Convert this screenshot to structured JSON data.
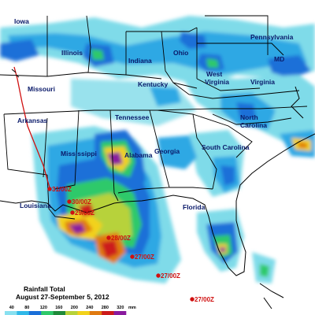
{
  "states": [
    {
      "key": "iowa",
      "name": "Iowa"
    },
    {
      "key": "illinois",
      "name": "Illinois"
    },
    {
      "key": "indiana",
      "name": "Indiana"
    },
    {
      "key": "ohio",
      "name": "Ohio"
    },
    {
      "key": "pennsylvania",
      "name": "Pennsylvania"
    },
    {
      "key": "md",
      "name": "MD"
    },
    {
      "key": "missouri",
      "name": "Missouri"
    },
    {
      "key": "kentucky",
      "name": "Kentucky"
    },
    {
      "key": "west_virginia_1",
      "name": "West"
    },
    {
      "key": "west_virginia_2",
      "name": "Virginia"
    },
    {
      "key": "virginia",
      "name": "Virginia"
    },
    {
      "key": "arkansas",
      "name": "Arkansas"
    },
    {
      "key": "tennessee",
      "name": "Tennessee"
    },
    {
      "key": "north_carolina_1",
      "name": "North"
    },
    {
      "key": "north_carolina_2",
      "name": "Carolina"
    },
    {
      "key": "mississippi",
      "name": "Mississippi"
    },
    {
      "key": "alabama",
      "name": "Alabama"
    },
    {
      "key": "georgia",
      "name": "Georgia"
    },
    {
      "key": "south_carolina",
      "name": "South Carolina"
    },
    {
      "key": "louisiana",
      "name": "Louisiana"
    },
    {
      "key": "florida",
      "name": "Florida"
    }
  ],
  "storm_track": {
    "color": "#d01010",
    "labels": [
      "31/00Z",
      "30/00Z",
      "29/00Z",
      "28/00Z",
      "27/00Z",
      "27/00Z",
      "27/00Z"
    ]
  },
  "caption": {
    "line1": "Rainfall Total",
    "line2": "August 27-September 5, 2012"
  },
  "legend": {
    "unit": "mm",
    "ticks": [
      "40",
      "80",
      "120",
      "160",
      "200",
      "240",
      "280",
      "320"
    ],
    "colors": [
      "#88e0f0",
      "#30b8e8",
      "#1a6fd8",
      "#2fc96a",
      "#1f8a3a",
      "#b7d23a",
      "#f2d21b",
      "#e07a10",
      "#cc1a1a",
      "#8a1a9e"
    ]
  }
}
